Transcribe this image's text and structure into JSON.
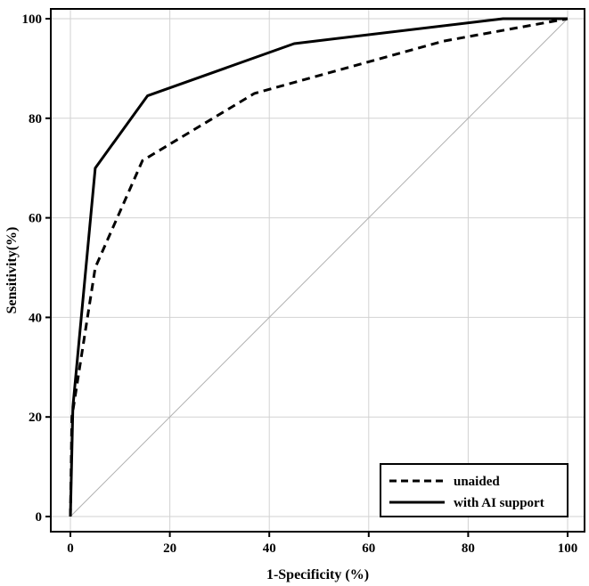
{
  "chart_data": {
    "type": "line",
    "title": "",
    "xlabel": "1-Specificity (%)",
    "ylabel": "Sensitivity(%)",
    "xlim": [
      0,
      100
    ],
    "ylim": [
      0,
      100
    ],
    "xticks": [
      0,
      20,
      40,
      60,
      80,
      100
    ],
    "yticks": [
      0,
      20,
      40,
      60,
      80,
      100
    ],
    "grid": true,
    "legend_position": "bottom-right",
    "series": [
      {
        "name": "unaided",
        "style": "dashed",
        "color": "#000000",
        "points": [
          [
            0,
            0
          ],
          [
            0.3,
            20
          ],
          [
            5,
            50
          ],
          [
            14.5,
            71.5
          ],
          [
            37,
            85
          ],
          [
            75,
            95.5
          ],
          [
            100,
            100
          ]
        ]
      },
      {
        "name": "with AI support",
        "style": "solid",
        "color": "#000000",
        "points": [
          [
            0,
            0
          ],
          [
            0.5,
            22
          ],
          [
            5,
            70
          ],
          [
            15.5,
            84.5
          ],
          [
            45,
            95
          ],
          [
            87,
            100
          ],
          [
            100,
            100
          ]
        ]
      }
    ],
    "reference_line": {
      "style": "solid",
      "color": "#b0b0b0",
      "points": [
        [
          0,
          0
        ],
        [
          100,
          100
        ]
      ]
    }
  }
}
